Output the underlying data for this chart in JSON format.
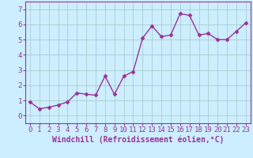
{
  "x": [
    0,
    1,
    2,
    3,
    4,
    5,
    6,
    7,
    8,
    9,
    10,
    11,
    12,
    13,
    14,
    15,
    16,
    17,
    18,
    19,
    20,
    21,
    22,
    23
  ],
  "y": [
    0.9,
    0.45,
    0.55,
    0.7,
    0.9,
    1.5,
    1.4,
    1.35,
    2.6,
    1.4,
    2.6,
    2.9,
    5.1,
    5.9,
    5.2,
    5.3,
    6.7,
    6.6,
    5.3,
    5.4,
    5.0,
    5.0,
    5.55,
    6.1
  ],
  "line_color": "#993399",
  "marker": "D",
  "marker_size": 2.5,
  "bg_color": "#cceeff",
  "grid_color": "#aacccc",
  "xlabel": "Windchill (Refroidissement éolien,°C)",
  "xlabel_fontsize": 7,
  "xlabel_color": "#993399",
  "xlim": [
    -0.5,
    23.5
  ],
  "ylim": [
    -0.5,
    7.5
  ],
  "xticks": [
    0,
    1,
    2,
    3,
    4,
    5,
    6,
    7,
    8,
    9,
    10,
    11,
    12,
    13,
    14,
    15,
    16,
    17,
    18,
    19,
    20,
    21,
    22,
    23
  ],
  "yticks": [
    0,
    1,
    2,
    3,
    4,
    5,
    6,
    7
  ],
  "tick_fontsize": 6.5,
  "tick_color": "#993399",
  "spine_color": "#993399",
  "line_width": 1.0
}
